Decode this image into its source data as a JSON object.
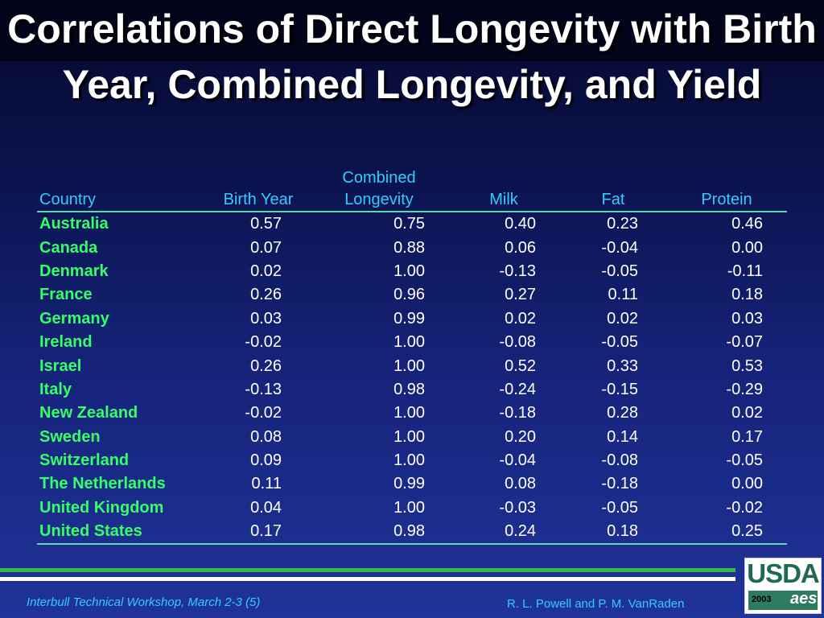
{
  "title": "Correlations of Direct Longevity with Birth Year, Combined Longevity, and Yield",
  "table": {
    "headers": {
      "country": "Country",
      "birth_year": "Birth Year",
      "combined_1": "Combined",
      "combined_2": "Longevity",
      "milk": "Milk",
      "fat": "Fat",
      "protein": "Protein"
    },
    "rows": [
      {
        "country": "Australia",
        "birth_year": "0.57",
        "combined": "0.75",
        "milk": "0.40",
        "fat": "0.23",
        "protein": "0.46"
      },
      {
        "country": "Canada",
        "birth_year": "0.07",
        "combined": "0.88",
        "milk": "0.06",
        "fat": "-0.04",
        "protein": "0.00"
      },
      {
        "country": "Denmark",
        "birth_year": "0.02",
        "combined": "1.00",
        "milk": "-0.13",
        "fat": "-0.05",
        "protein": "-0.11"
      },
      {
        "country": "France",
        "birth_year": "0.26",
        "combined": "0.96",
        "milk": "0.27",
        "fat": "0.11",
        "protein": "0.18"
      },
      {
        "country": "Germany",
        "birth_year": "0.03",
        "combined": "0.99",
        "milk": "0.02",
        "fat": "0.02",
        "protein": "0.03"
      },
      {
        "country": "Ireland",
        "birth_year": "-0.02",
        "combined": "1.00",
        "milk": "-0.08",
        "fat": "-0.05",
        "protein": "-0.07"
      },
      {
        "country": "Israel",
        "birth_year": "0.26",
        "combined": "1.00",
        "milk": "0.52",
        "fat": "0.33",
        "protein": "0.53"
      },
      {
        "country": "Italy",
        "birth_year": "-0.13",
        "combined": "0.98",
        "milk": "-0.24",
        "fat": "-0.15",
        "protein": "-0.29"
      },
      {
        "country": "New Zealand",
        "birth_year": "-0.02",
        "combined": "1.00",
        "milk": "-0.18",
        "fat": "0.28",
        "protein": "0.02"
      },
      {
        "country": "Sweden",
        "birth_year": "0.08",
        "combined": "1.00",
        "milk": "0.20",
        "fat": "0.14",
        "protein": "0.17"
      },
      {
        "country": "Switzerland",
        "birth_year": "0.09",
        "combined": "1.00",
        "milk": "-0.04",
        "fat": "-0.08",
        "protein": "-0.05"
      },
      {
        "country": "The Netherlands",
        "birth_year": "0.11",
        "combined": "0.99",
        "milk": "0.08",
        "fat": "-0.18",
        "protein": "0.00"
      },
      {
        "country": "United Kingdom",
        "birth_year": "0.04",
        "combined": "1.00",
        "milk": "-0.03",
        "fat": "-0.05",
        "protein": "-0.02"
      },
      {
        "country": "United States",
        "birth_year": "0.17",
        "combined": "0.98",
        "milk": "0.24",
        "fat": "0.18",
        "protein": "0.25"
      }
    ]
  },
  "footer": {
    "left": "Interbull Technical Workshop, March 2-3 (5)",
    "right": "R. L. Powell  and P. M. VanRaden"
  },
  "logo": {
    "text": "USDA",
    "year": "2003",
    "mark": "aes"
  },
  "colors": {
    "title": "#ffffff",
    "header": "#33ccff",
    "country": "#33ff66",
    "rule": "#5fd9a8",
    "footer": "#33ccff"
  }
}
